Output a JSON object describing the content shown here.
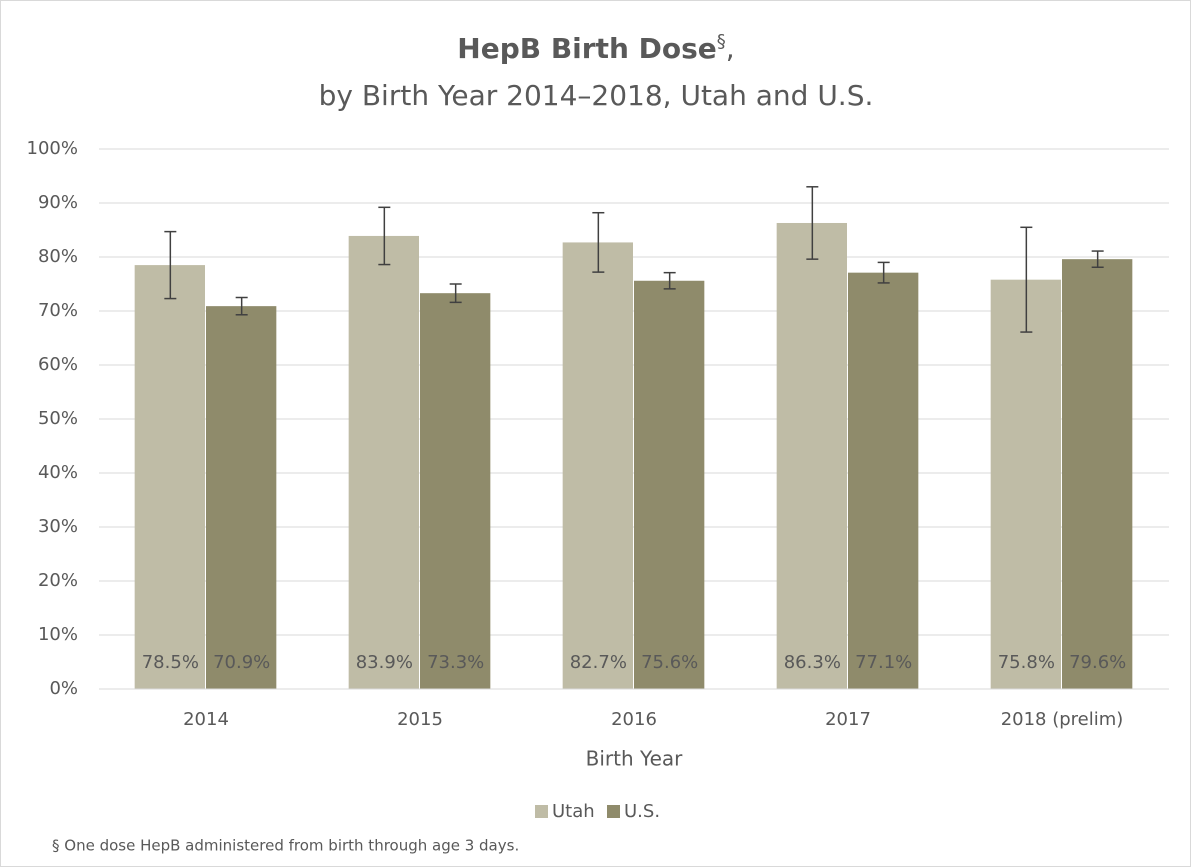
{
  "chart_data": {
    "type": "bar",
    "title": [
      "HepB Birth Dose",
      "§",
      ","
    ],
    "subtitle": "by Birth Year 2014–2018, Utah and U.S.",
    "x_label": "Birth Year",
    "categories": [
      "2014",
      "2015",
      "2016",
      "2017",
      "2018 (prelim)"
    ],
    "series": [
      {
        "name": "Utah",
        "color": "#bfbca6",
        "values": [
          78.5,
          83.9,
          82.7,
          86.3,
          75.8
        ],
        "value_labels": [
          "78.5%",
          "83.9%",
          "82.7%",
          "86.3%",
          "75.8%"
        ],
        "errors": [
          6.2,
          5.3,
          5.5,
          6.7,
          9.7
        ]
      },
      {
        "name": "U.S.",
        "color": "#8f8b6b",
        "values": [
          70.9,
          73.3,
          75.6,
          77.1,
          79.6
        ],
        "value_labels": [
          "70.9%",
          "73.3%",
          "75.6%",
          "77.1%",
          "79.6%"
        ],
        "errors": [
          1.6,
          1.7,
          1.5,
          1.9,
          1.5
        ]
      }
    ],
    "ylim": [
      0,
      100
    ],
    "yticks": [
      {
        "value": 0,
        "label": "0%"
      },
      {
        "value": 10,
        "label": "10%"
      },
      {
        "value": 20,
        "label": "20%"
      },
      {
        "value": 30,
        "label": "30%"
      },
      {
        "value": 40,
        "label": "40%"
      },
      {
        "value": 50,
        "label": "50%"
      },
      {
        "value": 60,
        "label": "60%"
      },
      {
        "value": 70,
        "label": "70%"
      },
      {
        "value": 80,
        "label": "80%"
      },
      {
        "value": 90,
        "label": "90%"
      },
      {
        "value": 100,
        "label": "100%"
      }
    ],
    "grid": true,
    "legend": "bottom",
    "footnote": "§ One dose HepB administered from birth through age 3 days."
  }
}
